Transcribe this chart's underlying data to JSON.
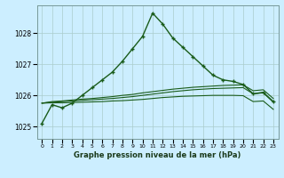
{
  "title": "Graphe pression niveau de la mer (hPa)",
  "background_color": "#cceeff",
  "grid_color": "#aacccc",
  "line_color": "#1a5c1a",
  "xlim": [
    -0.5,
    23.5
  ],
  "ylim": [
    1024.6,
    1028.9
  ],
  "yticks": [
    1025,
    1026,
    1027,
    1028
  ],
  "xtick_labels": [
    "0",
    "1",
    "2",
    "3",
    "4",
    "5",
    "6",
    "7",
    "8",
    "9",
    "10",
    "11",
    "12",
    "13",
    "14",
    "15",
    "16",
    "17",
    "18",
    "19",
    "20",
    "21",
    "22",
    "23"
  ],
  "series_main_x": [
    0,
    1,
    2,
    3,
    4,
    5,
    6,
    7,
    8,
    9,
    10,
    11,
    12,
    13,
    14,
    15,
    16,
    17,
    18,
    19,
    20,
    21,
    22,
    23
  ],
  "series_main_y": [
    1025.1,
    1025.7,
    1025.6,
    1025.75,
    1026.0,
    1026.25,
    1026.5,
    1026.75,
    1027.1,
    1027.5,
    1027.9,
    1028.65,
    1028.3,
    1027.85,
    1027.55,
    1027.25,
    1026.95,
    1026.65,
    1026.5,
    1026.45,
    1026.35,
    1026.05,
    1026.1,
    1025.8
  ],
  "series_flat1_x": [
    0,
    1,
    2,
    3,
    4,
    5,
    6,
    7,
    8,
    9,
    10,
    11,
    12,
    13,
    14,
    15,
    16,
    17,
    18,
    19,
    20,
    21,
    22,
    23
  ],
  "series_flat1_y": [
    1025.75,
    1025.8,
    1025.82,
    1025.85,
    1025.88,
    1025.9,
    1025.93,
    1025.96,
    1026.0,
    1026.03,
    1026.08,
    1026.12,
    1026.16,
    1026.2,
    1026.23,
    1026.26,
    1026.28,
    1026.3,
    1026.32,
    1026.33,
    1026.34,
    1026.15,
    1026.18,
    1025.9
  ],
  "series_flat2_x": [
    0,
    1,
    2,
    3,
    4,
    5,
    6,
    7,
    8,
    9,
    10,
    11,
    12,
    13,
    14,
    15,
    16,
    17,
    18,
    19,
    20,
    21,
    22,
    23
  ],
  "series_flat2_y": [
    1025.75,
    1025.78,
    1025.8,
    1025.82,
    1025.84,
    1025.86,
    1025.88,
    1025.9,
    1025.93,
    1025.96,
    1026.0,
    1026.04,
    1026.08,
    1026.12,
    1026.15,
    1026.18,
    1026.2,
    1026.22,
    1026.23,
    1026.24,
    1026.25,
    1026.05,
    1026.08,
    1025.78
  ],
  "series_flat3_x": [
    0,
    1,
    2,
    3,
    4,
    5,
    6,
    7,
    8,
    9,
    10,
    11,
    12,
    13,
    14,
    15,
    16,
    17,
    18,
    19,
    20,
    21,
    22,
    23
  ],
  "series_flat3_y": [
    1025.75,
    1025.76,
    1025.76,
    1025.77,
    1025.78,
    1025.79,
    1025.8,
    1025.82,
    1025.83,
    1025.85,
    1025.87,
    1025.9,
    1025.93,
    1025.95,
    1025.97,
    1025.98,
    1025.99,
    1026.0,
    1026.0,
    1026.0,
    1025.99,
    1025.8,
    1025.82,
    1025.55
  ]
}
